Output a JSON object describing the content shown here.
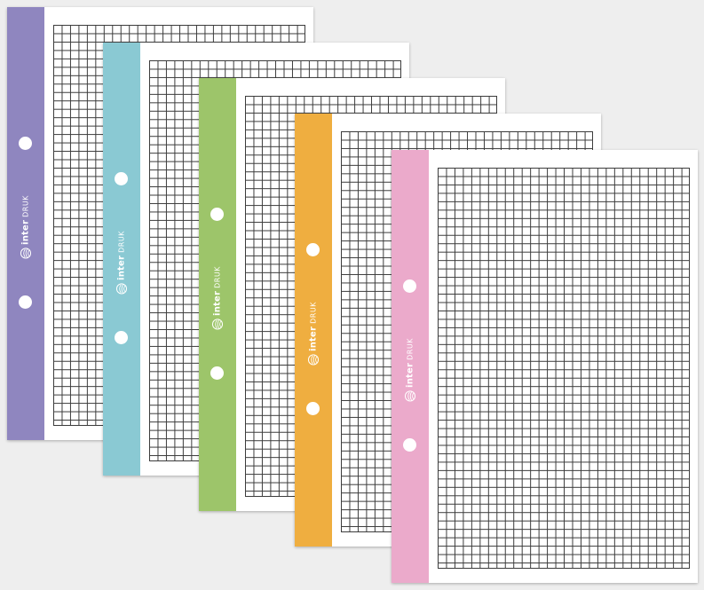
{
  "brand": {
    "name_bold": "inter",
    "name_light": "DRUK",
    "logo_icon": "interdruk-globe-logo"
  },
  "background_color": "#eeeeee",
  "sheets": [
    {
      "strip_color": "#8f86bf",
      "color_name": "violet"
    },
    {
      "strip_color": "#8ac9d3",
      "color_name": "light-blue"
    },
    {
      "strip_color": "#9dc56a",
      "color_name": "green"
    },
    {
      "strip_color": "#efae40",
      "color_name": "orange"
    },
    {
      "strip_color": "#ebaacb",
      "color_name": "pink"
    }
  ]
}
